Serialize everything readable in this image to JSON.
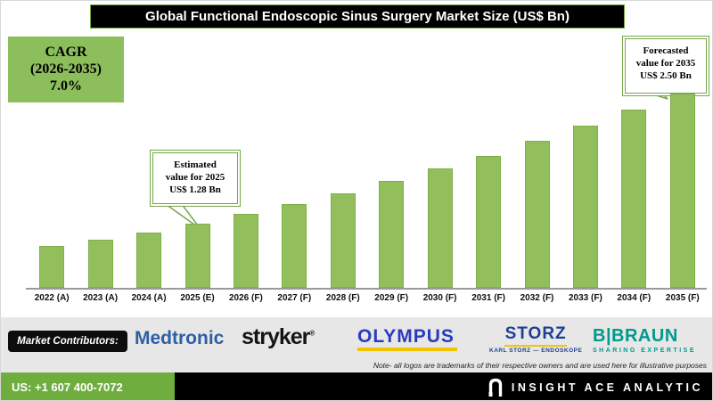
{
  "header": {
    "title": "Global Functional Endoscopic Sinus Surgery Market Size (US$ Bn)"
  },
  "cagr_box": {
    "line1": "CAGR",
    "line2": "(2026-2035)",
    "line3": "7.0%"
  },
  "annotations": {
    "estimated": {
      "lines": [
        "Estimated",
        "value for 2025",
        "US$ 1.28 Bn"
      ]
    },
    "forecasted": {
      "lines": [
        "Forecasted",
        "value for 2035",
        "US$ 2.50 Bn"
      ]
    }
  },
  "chart_data": {
    "type": "bar",
    "title": "Global Functional Endoscopic Sinus Surgery Market Size (US$ Bn)",
    "categories": [
      "2022 (A)",
      "2023 (A)",
      "2024 (A)",
      "2025 (E)",
      "2026 (F)",
      "2027 (F)",
      "2028 (F)",
      "2029 (F)",
      "2030 (F)",
      "2031 (F)",
      "2032 (F)",
      "2033 (F)",
      "2034 (F)",
      "2035 (F)"
    ],
    "values": [
      1.07,
      1.13,
      1.2,
      1.28,
      1.37,
      1.47,
      1.57,
      1.68,
      1.8,
      1.92,
      2.06,
      2.2,
      2.35,
      2.5
    ],
    "unit": "US$ Bn",
    "xlabel": "",
    "ylabel": "",
    "ylim": [
      0,
      2.75
    ],
    "grid": false,
    "legend": "none",
    "bar_color": "#92bf5b",
    "value_labels_shown": false,
    "known_points": {
      "2025": 1.28,
      "2035": 2.5
    },
    "cagr_2026_2035": "7.0%"
  },
  "contributors": {
    "label": "Market Contributors:",
    "medtronic": {
      "text": "Medtronic"
    },
    "stryker": {
      "text": "stryker",
      "reg": "®"
    },
    "olympus": {
      "text": "OLYMPUS"
    },
    "storz": {
      "main": "STORZ",
      "sub": "KARL STORZ — ENDOSKOPE"
    },
    "braun": {
      "main": "B|BRAUN",
      "sub": "SHARING EXPERTISE"
    },
    "note": "Note- all logos are trademarks of their respective owners and are used here for illustrative purposes"
  },
  "footer": {
    "phone": "US: +1 607 400-7072",
    "brand": "INSIGHT ACE ANALYTIC"
  }
}
